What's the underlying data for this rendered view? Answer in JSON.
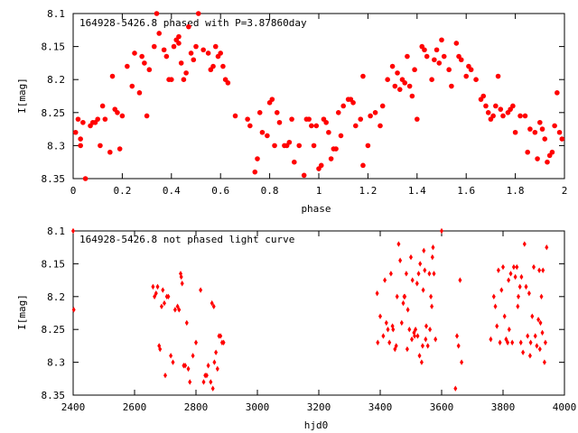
{
  "chart_data": [
    {
      "type": "scatter",
      "title": "164928-5426.8 phased with P=3.87860day",
      "xlabel": "phase",
      "ylabel": "I[mag]",
      "xlim": [
        0,
        2
      ],
      "ylim": [
        8.35,
        8.1
      ],
      "y_axis_inverted": true,
      "x_ticks": [
        "0",
        "0.2",
        "0.4",
        "0.6",
        "0.8",
        "1",
        "1.2",
        "1.4",
        "1.6",
        "1.8",
        "2"
      ],
      "y_ticks": [
        "8.1",
        "8.15",
        "8.2",
        "8.25",
        "8.3",
        "8.35"
      ],
      "grid": false,
      "marker": "filled-circle",
      "color": "#ff0000",
      "points": [
        [
          0.01,
          8.28
        ],
        [
          0.02,
          8.26
        ],
        [
          0.03,
          8.29
        ],
        [
          0.03,
          8.3
        ],
        [
          0.04,
          8.265
        ],
        [
          0.05,
          8.35
        ],
        [
          0.07,
          8.27
        ],
        [
          0.08,
          8.265
        ],
        [
          0.09,
          8.265
        ],
        [
          0.1,
          8.26
        ],
        [
          0.11,
          8.3
        ],
        [
          0.12,
          8.24
        ],
        [
          0.13,
          8.26
        ],
        [
          0.15,
          8.31
        ],
        [
          0.16,
          8.195
        ],
        [
          0.17,
          8.245
        ],
        [
          0.18,
          8.25
        ],
        [
          0.19,
          8.305
        ],
        [
          0.2,
          8.255
        ],
        [
          0.22,
          8.18
        ],
        [
          0.24,
          8.21
        ],
        [
          0.25,
          8.16
        ],
        [
          0.27,
          8.22
        ],
        [
          0.28,
          8.165
        ],
        [
          0.29,
          8.175
        ],
        [
          0.3,
          8.255
        ],
        [
          0.31,
          8.185
        ],
        [
          0.33,
          8.15
        ],
        [
          0.34,
          8.1
        ],
        [
          0.35,
          8.13
        ],
        [
          0.37,
          8.155
        ],
        [
          0.38,
          8.165
        ],
        [
          0.39,
          8.2
        ],
        [
          0.4,
          8.2
        ],
        [
          0.41,
          8.15
        ],
        [
          0.42,
          8.14
        ],
        [
          0.43,
          8.135
        ],
        [
          0.43,
          8.145
        ],
        [
          0.44,
          8.175
        ],
        [
          0.45,
          8.2
        ],
        [
          0.46,
          8.19
        ],
        [
          0.47,
          8.12
        ],
        [
          0.48,
          8.16
        ],
        [
          0.49,
          8.17
        ],
        [
          0.5,
          8.15
        ],
        [
          0.51,
          8.1
        ],
        [
          0.53,
          8.155
        ],
        [
          0.55,
          8.16
        ],
        [
          0.56,
          8.185
        ],
        [
          0.57,
          8.18
        ],
        [
          0.58,
          8.15
        ],
        [
          0.59,
          8.165
        ],
        [
          0.6,
          8.16
        ],
        [
          0.61,
          8.18
        ],
        [
          0.62,
          8.2
        ],
        [
          0.63,
          8.205
        ],
        [
          0.66,
          8.255
        ],
        [
          0.71,
          8.26
        ],
        [
          0.72,
          8.27
        ],
        [
          0.74,
          8.34
        ],
        [
          0.75,
          8.32
        ],
        [
          0.76,
          8.25
        ],
        [
          0.77,
          8.28
        ],
        [
          0.79,
          8.285
        ],
        [
          0.8,
          8.235
        ],
        [
          0.81,
          8.23
        ],
        [
          0.82,
          8.3
        ],
        [
          0.83,
          8.25
        ],
        [
          0.84,
          8.265
        ],
        [
          0.86,
          8.3
        ],
        [
          0.87,
          8.3
        ],
        [
          0.88,
          8.295
        ],
        [
          0.89,
          8.26
        ],
        [
          0.9,
          8.325
        ],
        [
          0.92,
          8.3
        ],
        [
          0.94,
          8.345
        ],
        [
          0.95,
          8.26
        ],
        [
          0.96,
          8.26
        ],
        [
          0.97,
          8.27
        ],
        [
          0.98,
          8.3
        ],
        [
          0.99,
          8.27
        ],
        [
          1.0,
          8.335
        ],
        [
          1.01,
          8.33
        ],
        [
          1.02,
          8.26
        ],
        [
          1.03,
          8.265
        ],
        [
          1.04,
          8.28
        ],
        [
          1.05,
          8.32
        ],
        [
          1.06,
          8.305
        ],
        [
          1.07,
          8.305
        ],
        [
          1.08,
          8.25
        ],
        [
          1.09,
          8.285
        ],
        [
          1.1,
          8.24
        ],
        [
          1.12,
          8.23
        ],
        [
          1.13,
          8.23
        ],
        [
          1.14,
          8.235
        ],
        [
          1.15,
          8.27
        ],
        [
          1.17,
          8.26
        ],
        [
          1.18,
          8.195
        ],
        [
          1.18,
          8.33
        ],
        [
          1.2,
          8.3
        ],
        [
          1.21,
          8.255
        ],
        [
          1.23,
          8.25
        ],
        [
          1.25,
          8.27
        ],
        [
          1.26,
          8.24
        ],
        [
          1.28,
          8.2
        ],
        [
          1.3,
          8.18
        ],
        [
          1.31,
          8.21
        ],
        [
          1.32,
          8.19
        ],
        [
          1.33,
          8.215
        ],
        [
          1.34,
          8.2
        ],
        [
          1.35,
          8.205
        ],
        [
          1.36,
          8.165
        ],
        [
          1.37,
          8.21
        ],
        [
          1.38,
          8.225
        ],
        [
          1.39,
          8.185
        ],
        [
          1.4,
          8.26
        ],
        [
          1.42,
          8.15
        ],
        [
          1.43,
          8.155
        ],
        [
          1.44,
          8.165
        ],
        [
          1.46,
          8.2
        ],
        [
          1.47,
          8.17
        ],
        [
          1.48,
          8.155
        ],
        [
          1.49,
          8.175
        ],
        [
          1.5,
          8.14
        ],
        [
          1.51,
          8.165
        ],
        [
          1.53,
          8.185
        ],
        [
          1.54,
          8.21
        ],
        [
          1.56,
          8.145
        ],
        [
          1.57,
          8.165
        ],
        [
          1.58,
          8.17
        ],
        [
          1.6,
          8.195
        ],
        [
          1.61,
          8.18
        ],
        [
          1.62,
          8.185
        ],
        [
          1.64,
          8.2
        ],
        [
          1.66,
          8.23
        ],
        [
          1.67,
          8.225
        ],
        [
          1.68,
          8.24
        ],
        [
          1.69,
          8.25
        ],
        [
          1.7,
          8.26
        ],
        [
          1.71,
          8.255
        ],
        [
          1.72,
          8.24
        ],
        [
          1.73,
          8.195
        ],
        [
          1.74,
          8.245
        ],
        [
          1.75,
          8.255
        ],
        [
          1.77,
          8.25
        ],
        [
          1.78,
          8.245
        ],
        [
          1.79,
          8.24
        ],
        [
          1.8,
          8.28
        ],
        [
          1.82,
          8.255
        ],
        [
          1.84,
          8.255
        ],
        [
          1.85,
          8.31
        ],
        [
          1.86,
          8.275
        ],
        [
          1.88,
          8.28
        ],
        [
          1.89,
          8.32
        ],
        [
          1.9,
          8.265
        ],
        [
          1.91,
          8.275
        ],
        [
          1.92,
          8.29
        ],
        [
          1.93,
          8.325
        ],
        [
          1.94,
          8.315
        ],
        [
          1.95,
          8.31
        ],
        [
          1.96,
          8.27
        ],
        [
          1.97,
          8.22
        ],
        [
          1.98,
          8.28
        ],
        [
          1.99,
          8.29
        ]
      ]
    },
    {
      "type": "scatter",
      "title": "164928-5426.8 not phased light curve",
      "xlabel": "hjd0",
      "ylabel": "I[mag]",
      "xlim": [
        2400,
        4000
      ],
      "ylim": [
        8.35,
        8.1
      ],
      "y_axis_inverted": true,
      "x_ticks": [
        "2400",
        "2600",
        "2800",
        "3000",
        "3200",
        "3400",
        "3600",
        "3800",
        "4000"
      ],
      "y_ticks": [
        "8.1",
        "8.15",
        "8.2",
        "8.25",
        "8.3",
        "8.35"
      ],
      "grid": false,
      "marker": "diamond",
      "color": "#ff0000",
      "points": [
        [
          2400,
          8.1
        ],
        [
          2402,
          8.22
        ],
        [
          2660,
          8.185
        ],
        [
          2665,
          8.2
        ],
        [
          2670,
          8.195
        ],
        [
          2675,
          8.185
        ],
        [
          2680,
          8.275
        ],
        [
          2683,
          8.28
        ],
        [
          2688,
          8.215
        ],
        [
          2692,
          8.19
        ],
        [
          2697,
          8.21
        ],
        [
          2700,
          8.32
        ],
        [
          2705,
          8.2
        ],
        [
          2710,
          8.2
        ],
        [
          2718,
          8.29
        ],
        [
          2725,
          8.3
        ],
        [
          2732,
          8.22
        ],
        [
          2740,
          8.215
        ],
        [
          2745,
          8.22
        ],
        [
          2750,
          8.165
        ],
        [
          2752,
          8.17
        ],
        [
          2755,
          8.18
        ],
        [
          2760,
          8.305
        ],
        [
          2765,
          8.305
        ],
        [
          2770,
          8.24
        ],
        [
          2775,
          8.31
        ],
        [
          2780,
          8.33
        ],
        [
          2790,
          8.29
        ],
        [
          2800,
          8.27
        ],
        [
          2815,
          8.19
        ],
        [
          2825,
          8.33
        ],
        [
          2830,
          8.32
        ],
        [
          2835,
          8.32
        ],
        [
          2840,
          8.305
        ],
        [
          2848,
          8.33
        ],
        [
          2852,
          8.21
        ],
        [
          2855,
          8.34
        ],
        [
          2858,
          8.215
        ],
        [
          2860,
          8.3
        ],
        [
          2865,
          8.285
        ],
        [
          2870,
          8.31
        ],
        [
          2875,
          8.26
        ],
        [
          2880,
          8.26
        ],
        [
          2885,
          8.27
        ],
        [
          2890,
          8.27
        ],
        [
          3390,
          8.195
        ],
        [
          3392,
          8.27
        ],
        [
          3400,
          8.23
        ],
        [
          3410,
          8.26
        ],
        [
          3415,
          8.175
        ],
        [
          3420,
          8.24
        ],
        [
          3425,
          8.25
        ],
        [
          3430,
          8.27
        ],
        [
          3435,
          8.165
        ],
        [
          3440,
          8.245
        ],
        [
          3442,
          8.25
        ],
        [
          3448,
          8.28
        ],
        [
          3452,
          8.275
        ],
        [
          3455,
          8.2
        ],
        [
          3460,
          8.12
        ],
        [
          3465,
          8.145
        ],
        [
          3470,
          8.24
        ],
        [
          3475,
          8.21
        ],
        [
          3478,
          8.2
        ],
        [
          3480,
          8.2
        ],
        [
          3485,
          8.165
        ],
        [
          3488,
          8.28
        ],
        [
          3490,
          8.22
        ],
        [
          3495,
          8.25
        ],
        [
          3500,
          8.14
        ],
        [
          3503,
          8.265
        ],
        [
          3505,
          8.175
        ],
        [
          3510,
          8.255
        ],
        [
          3512,
          8.26
        ],
        [
          3515,
          8.25
        ],
        [
          3520,
          8.18
        ],
        [
          3522,
          8.26
        ],
        [
          3525,
          8.165
        ],
        [
          3528,
          8.29
        ],
        [
          3530,
          8.15
        ],
        [
          3535,
          8.3
        ],
        [
          3538,
          8.275
        ],
        [
          3540,
          8.19
        ],
        [
          3542,
          8.13
        ],
        [
          3545,
          8.16
        ],
        [
          3548,
          8.265
        ],
        [
          3550,
          8.245
        ],
        [
          3555,
          8.275
        ],
        [
          3560,
          8.165
        ],
        [
          3562,
          8.25
        ],
        [
          3565,
          8.2
        ],
        [
          3568,
          8.215
        ],
        [
          3570,
          8.14
        ],
        [
          3572,
          8.125
        ],
        [
          3575,
          8.165
        ],
        [
          3580,
          8.265
        ],
        [
          3600,
          8.1
        ],
        [
          3645,
          8.34
        ],
        [
          3650,
          8.26
        ],
        [
          3655,
          8.275
        ],
        [
          3660,
          8.175
        ],
        [
          3665,
          8.3
        ],
        [
          3760,
          8.265
        ],
        [
          3770,
          8.2
        ],
        [
          3775,
          8.215
        ],
        [
          3780,
          8.245
        ],
        [
          3785,
          8.16
        ],
        [
          3790,
          8.27
        ],
        [
          3795,
          8.19
        ],
        [
          3800,
          8.155
        ],
        [
          3805,
          8.23
        ],
        [
          3810,
          8.265
        ],
        [
          3815,
          8.27
        ],
        [
          3818,
          8.175
        ],
        [
          3820,
          8.25
        ],
        [
          3825,
          8.165
        ],
        [
          3830,
          8.27
        ],
        [
          3835,
          8.155
        ],
        [
          3840,
          8.17
        ],
        [
          3845,
          8.155
        ],
        [
          3848,
          8.215
        ],
        [
          3850,
          8.2
        ],
        [
          3855,
          8.185
        ],
        [
          3858,
          8.27
        ],
        [
          3860,
          8.17
        ],
        [
          3865,
          8.285
        ],
        [
          3870,
          8.12
        ],
        [
          3875,
          8.185
        ],
        [
          3880,
          8.26
        ],
        [
          3885,
          8.195
        ],
        [
          3888,
          8.29
        ],
        [
          3890,
          8.27
        ],
        [
          3895,
          8.23
        ],
        [
          3900,
          8.155
        ],
        [
          3905,
          8.26
        ],
        [
          3910,
          8.275
        ],
        [
          3915,
          8.235
        ],
        [
          3918,
          8.16
        ],
        [
          3920,
          8.28
        ],
        [
          3922,
          8.24
        ],
        [
          3925,
          8.2
        ],
        [
          3928,
          8.255
        ],
        [
          3930,
          8.16
        ],
        [
          3935,
          8.3
        ],
        [
          3938,
          8.27
        ],
        [
          3942,
          8.125
        ]
      ]
    }
  ]
}
